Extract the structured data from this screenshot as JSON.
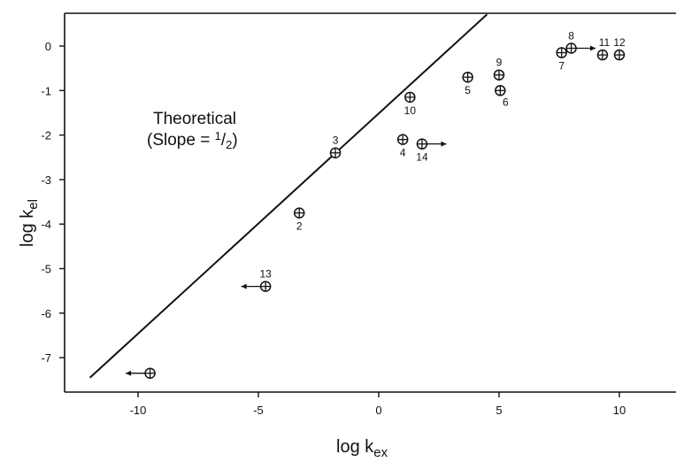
{
  "chart_data": {
    "type": "scatter",
    "xlabel": {
      "main": "log k",
      "sub": "ex"
    },
    "ylabel": {
      "main": "log k",
      "sub": "el"
    },
    "xlim": [
      -13,
      12.5
    ],
    "ylim": [
      -8,
      0.75
    ],
    "xticks": [
      -10,
      -5,
      0,
      5,
      10
    ],
    "yticks": [
      0,
      -1,
      -2,
      -3,
      -4,
      -5,
      -6,
      -7
    ],
    "xtick_labels": [
      "-10",
      "-5",
      "0",
      "5",
      "10"
    ],
    "ytick_labels": [
      "0",
      "-1",
      "-2",
      "-3",
      "-4",
      "-5",
      "-6",
      "-7"
    ],
    "grid": false,
    "theoretical_line": {
      "slope": 0.5,
      "x": [
        -12,
        4.5
      ],
      "y": [
        -7.45,
        0.75
      ]
    },
    "annotation": {
      "line1": "Theoretical",
      "line2_prefix": "(Slope = ",
      "line2_num": "1",
      "line2_slash": "/",
      "line2_den": "2",
      "line2_suffix": ")"
    },
    "points": [
      {
        "label": "",
        "x": -9.5,
        "y": -7.35,
        "arrow": "left",
        "label_pos": "none"
      },
      {
        "label": "13",
        "x": -4.7,
        "y": -5.4,
        "arrow": "left",
        "label_pos": "above"
      },
      {
        "label": "2",
        "x": -3.3,
        "y": -3.75,
        "arrow": "",
        "label_pos": "below"
      },
      {
        "label": "3",
        "x": -1.8,
        "y": -2.4,
        "arrow": "",
        "label_pos": "above"
      },
      {
        "label": "4",
        "x": 1.0,
        "y": -2.1,
        "arrow": "",
        "label_pos": "below"
      },
      {
        "label": "10",
        "x": 1.3,
        "y": -1.15,
        "arrow": "",
        "label_pos": "below"
      },
      {
        "label": "14",
        "x": 1.8,
        "y": -2.2,
        "arrow": "right",
        "label_pos": "below"
      },
      {
        "label": "5",
        "x": 3.7,
        "y": -0.7,
        "arrow": "",
        "label_pos": "below"
      },
      {
        "label": "9",
        "x": 5.0,
        "y": -0.65,
        "arrow": "",
        "label_pos": "above"
      },
      {
        "label": "6",
        "x": 5.05,
        "y": -1.0,
        "arrow": "",
        "label_pos": "below-right"
      },
      {
        "label": "7",
        "x": 7.6,
        "y": -0.15,
        "arrow": "",
        "label_pos": "below"
      },
      {
        "label": "8",
        "x": 8.0,
        "y": -0.05,
        "arrow": "right",
        "label_pos": "above"
      },
      {
        "label": "11",
        "x": 9.3,
        "y": -0.2,
        "arrow": "",
        "label_pos": "above-right"
      },
      {
        "label": "12",
        "x": 10.0,
        "y": -0.2,
        "arrow": "",
        "label_pos": "above"
      }
    ]
  }
}
